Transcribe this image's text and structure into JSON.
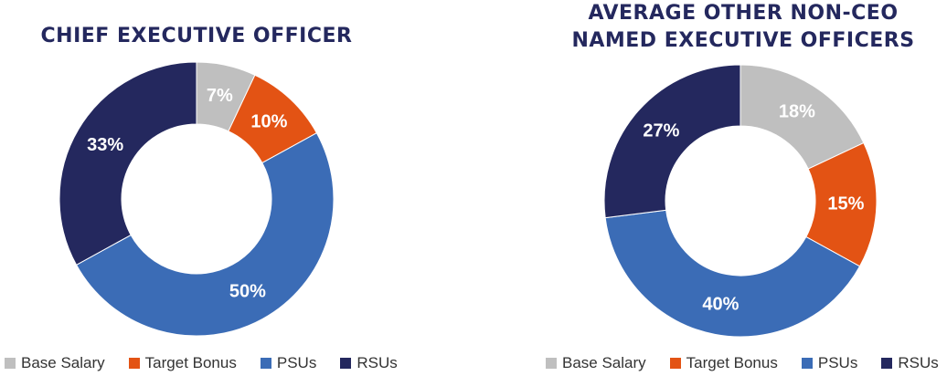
{
  "chart_data": [
    {
      "type": "donut",
      "title": "CHIEF EXECUTIVE OFFICER",
      "categories": [
        "Base Salary",
        "Target Bonus",
        "PSUs",
        "RSUs"
      ],
      "values": [
        7,
        10,
        50,
        33
      ],
      "labels": [
        "7%",
        "10%",
        "50%",
        "33%"
      ],
      "colors": [
        "#bfbfbf",
        "#e35314",
        "#3b6cb6",
        "#24285e"
      ],
      "legend_position": "bottom"
    },
    {
      "type": "donut",
      "title_lines": [
        "AVERAGE OTHER NON-CEO",
        "NAMED EXECUTIVE OFFICERS"
      ],
      "categories": [
        "Base Salary",
        "Target Bonus",
        "PSUs",
        "RSUs"
      ],
      "values": [
        18,
        15,
        40,
        27
      ],
      "labels": [
        "18%",
        "15%",
        "40%",
        "27%"
      ],
      "colors": [
        "#bfbfbf",
        "#e35314",
        "#3b6cb6",
        "#24285e"
      ],
      "legend_position": "bottom"
    }
  ]
}
